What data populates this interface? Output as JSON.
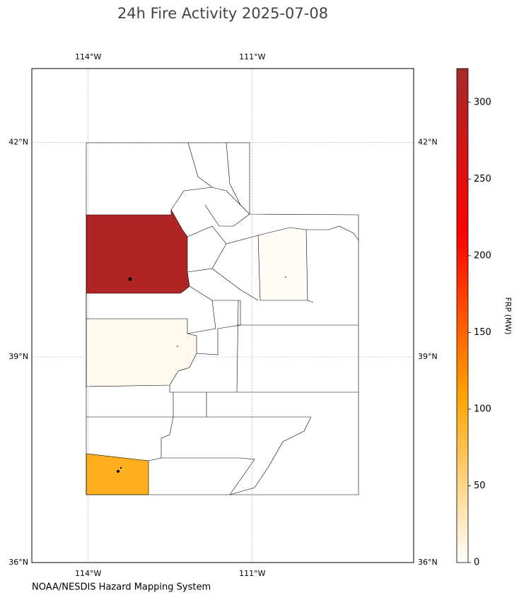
{
  "chart_data": {
    "type": "choropleth",
    "title": "24h Fire Activity 2025-07-08",
    "source": "NOAA/NESDIS Hazard Mapping System",
    "xlim": [
      -115.03,
      -108.05
    ],
    "ylim": [
      36,
      43
    ],
    "xticks": [
      {
        "value": -114,
        "label": "114°W"
      },
      {
        "value": -111,
        "label": "111°W"
      }
    ],
    "yticks": [
      {
        "value": 36,
        "label": "36°N"
      },
      {
        "value": 39,
        "label": "39°N"
      },
      {
        "value": 42,
        "label": "42°N"
      }
    ],
    "grid": true,
    "values": [
      310,
      8,
      4,
      95
    ],
    "colorbar": {
      "label": "FRP (MW)",
      "lim": [
        0,
        322
      ],
      "ticks": [
        0,
        50,
        100,
        150,
        200,
        250,
        300
      ],
      "colormap": [
        "#ffffff",
        "#ffa500",
        "#ff0000",
        "#a52a2a"
      ]
    }
  }
}
